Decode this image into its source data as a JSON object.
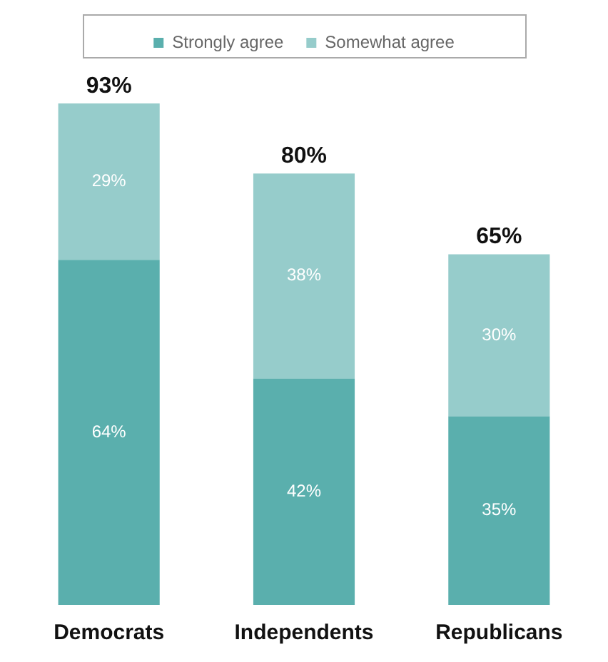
{
  "chart_data": {
    "type": "bar",
    "stacked": true,
    "categories": [
      "Democrats",
      "Independents",
      "Republicans"
    ],
    "series": [
      {
        "name": "Strongly agree",
        "color": "#5aafad",
        "values": [
          64,
          42,
          35
        ],
        "value_labels": [
          "64%",
          "42%",
          "35%"
        ]
      },
      {
        "name": "Somewhat agree",
        "color": "#96cccb",
        "values": [
          29,
          38,
          30
        ],
        "value_labels": [
          "29%",
          "38%",
          "30%"
        ]
      }
    ],
    "totals": [
      "93%",
      "80%",
      "65%"
    ],
    "legend": "top",
    "grid": false
  }
}
